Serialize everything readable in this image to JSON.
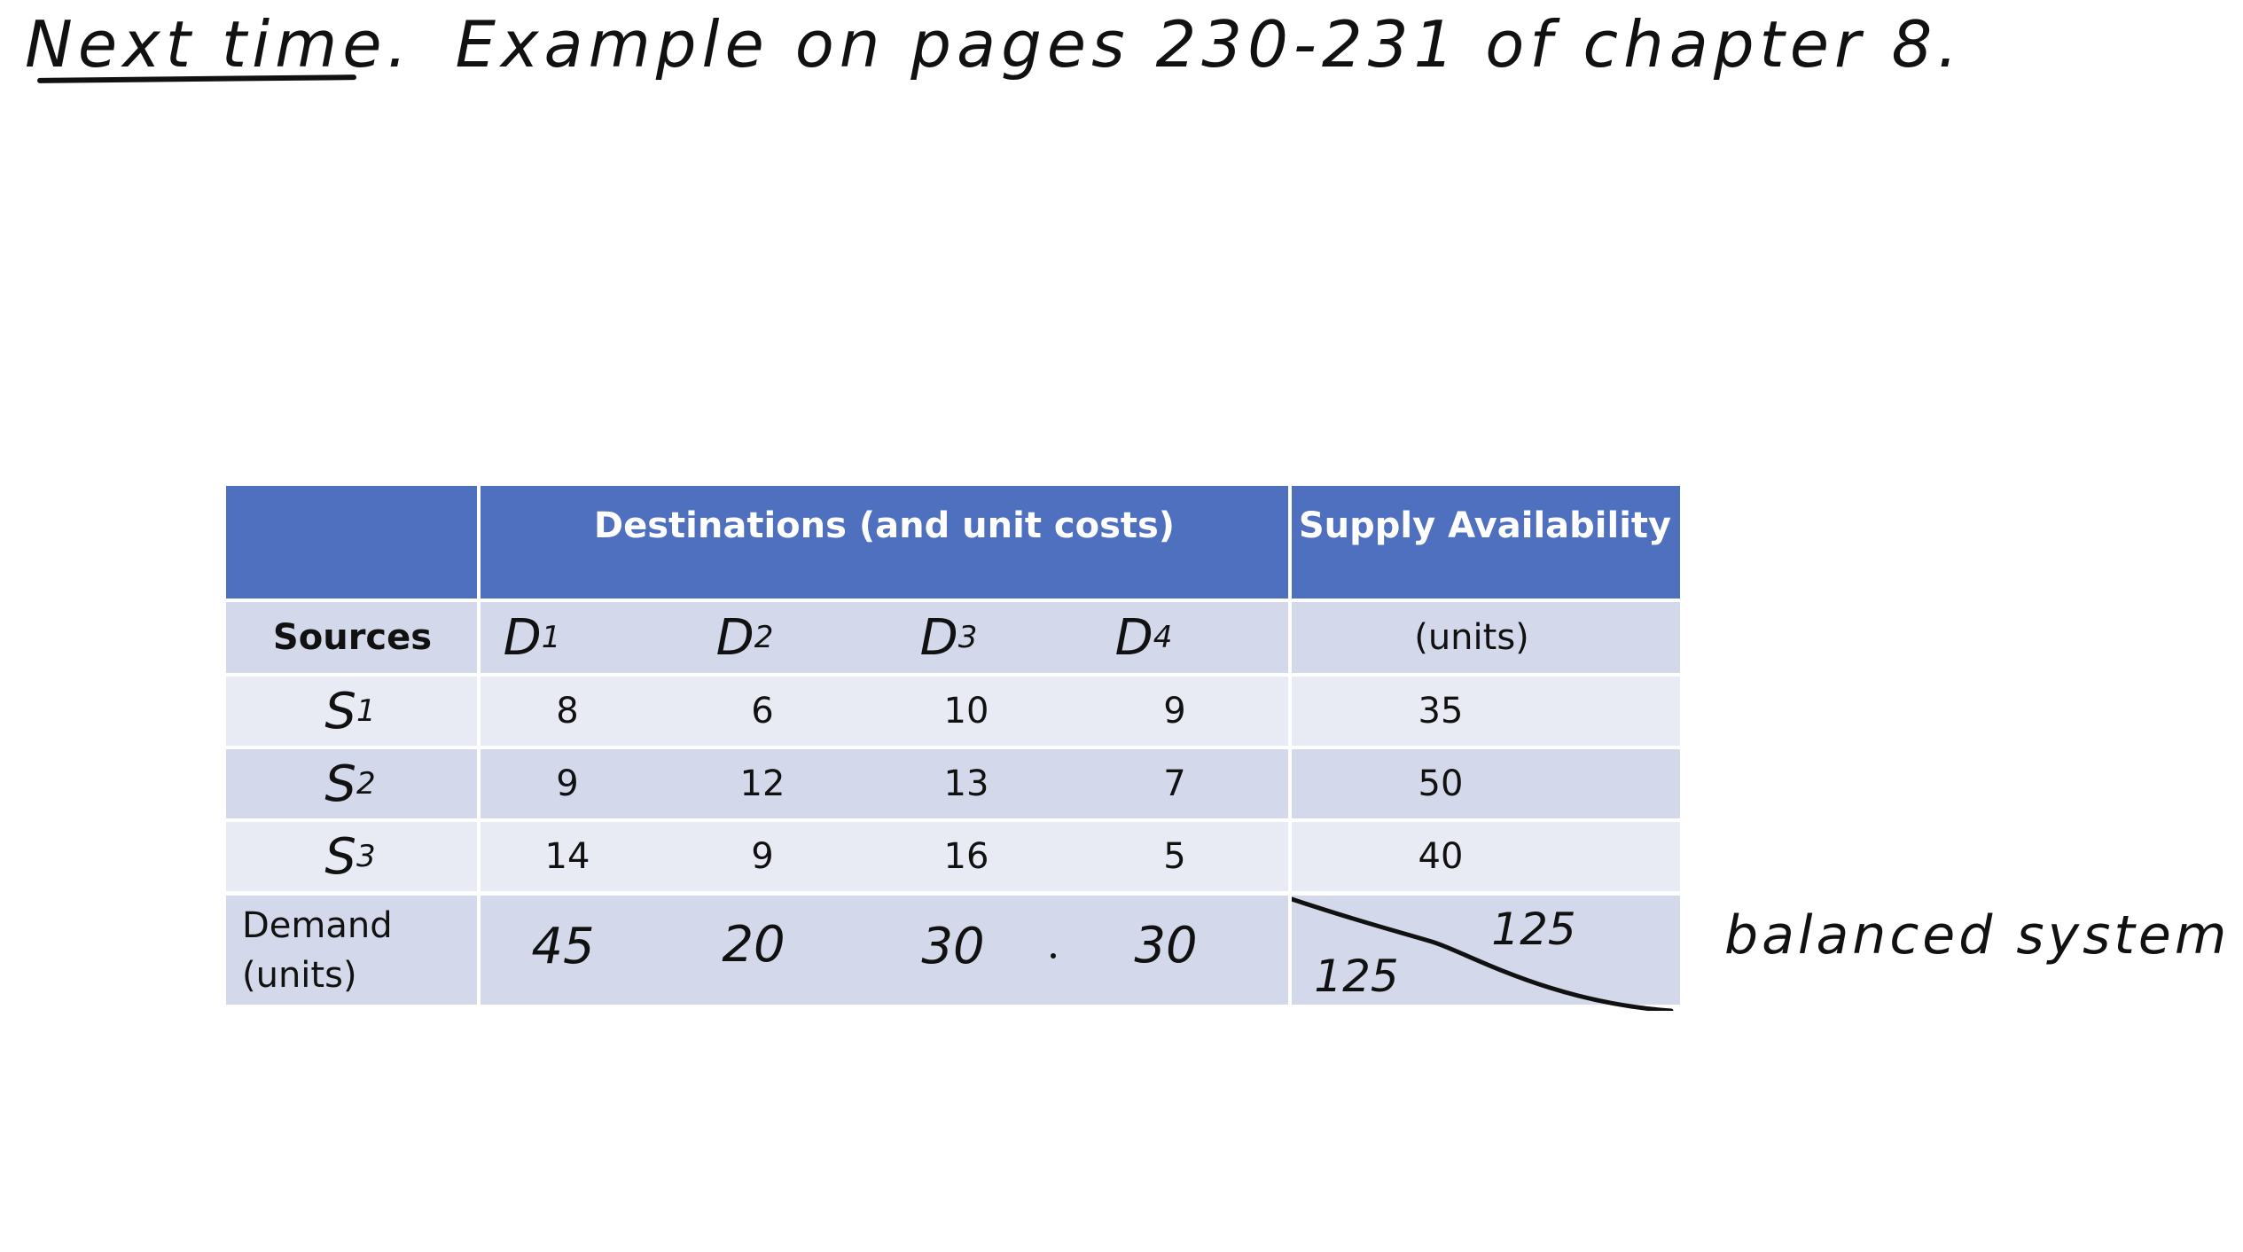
{
  "heading": {
    "lead": "Next time.",
    "rest": "Example on pages 230-231 of chapter 8."
  },
  "table": {
    "header": {
      "destinations": "Destinations (and unit costs)",
      "supply": "Supply Availability"
    },
    "subheader": {
      "sources": "Sources",
      "units": "(units)",
      "destinations": [
        "D",
        "D",
        "D",
        "D"
      ],
      "destination_subscripts": [
        "1",
        "2",
        "3",
        "4"
      ]
    },
    "rows": [
      {
        "source": "S",
        "sub": "1",
        "costs": [
          "8",
          "6",
          "10",
          "9"
        ],
        "supply": "35"
      },
      {
        "source": "S",
        "sub": "2",
        "costs": [
          "9",
          "12",
          "13",
          "7"
        ],
        "supply": "50"
      },
      {
        "source": "S",
        "sub": "3",
        "costs": [
          "14",
          "9",
          "16",
          "5"
        ],
        "supply": "40"
      }
    ],
    "demand": {
      "label_line1": "Demand",
      "label_line2": "(units)",
      "values": [
        "45",
        "20",
        "30",
        "30"
      ],
      "total_supply": "125",
      "total_demand": "125"
    }
  },
  "note": "balanced system",
  "colors": {
    "header_blue": "#4f6fbf",
    "row_dark": "#d3d8ea",
    "row_light": "#e9ebf4",
    "handwriting_purple": "#6a2fb8"
  }
}
